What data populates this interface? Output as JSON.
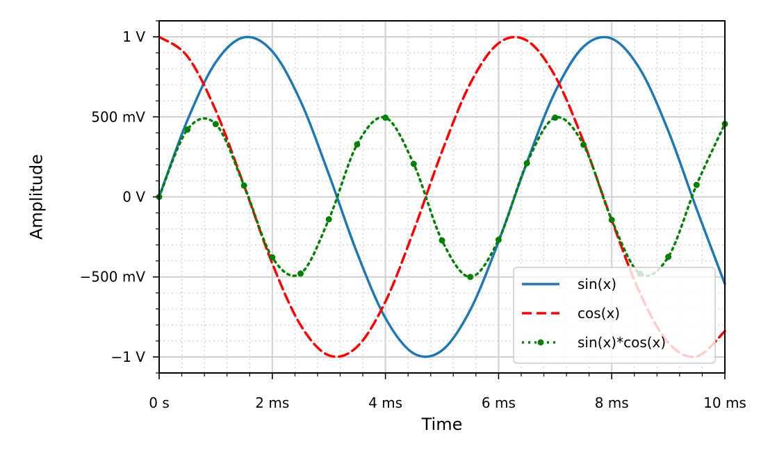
{
  "chart_data": {
    "type": "line",
    "title": "",
    "xlabel": "Time",
    "ylabel": "Amplitude",
    "x_unit": "s",
    "y_unit": "V",
    "xlim": [
      0,
      0.01
    ],
    "ylim": [
      -1.1,
      1.1
    ],
    "x_ticks": [
      {
        "value": 0,
        "label": "0 s"
      },
      {
        "value": 0.002,
        "label": "2 ms"
      },
      {
        "value": 0.004,
        "label": "4 ms"
      },
      {
        "value": 0.006,
        "label": "6 ms"
      },
      {
        "value": 0.008,
        "label": "8 ms"
      },
      {
        "value": 0.01,
        "label": "10 ms"
      }
    ],
    "y_ticks": [
      {
        "value": 1,
        "label": "1 V"
      },
      {
        "value": 0.5,
        "label": "500 mV"
      },
      {
        "value": 0,
        "label": "0 V"
      },
      {
        "value": -0.5,
        "label": "−500 mV"
      },
      {
        "value": -1,
        "label": "−1 V"
      }
    ],
    "grid": {
      "major": true,
      "minor": true
    },
    "legend": {
      "placement": "lower-right"
    },
    "series": [
      {
        "name": "sin(x)",
        "color": "#1f77b4",
        "linestyle": "solid",
        "x": [
          0,
          0.0005,
          0.001,
          0.0015,
          0.002,
          0.0025,
          0.003,
          0.0035,
          0.004,
          0.0045,
          0.005,
          0.0055,
          0.006,
          0.0065,
          0.007,
          0.0075,
          0.008,
          0.0085,
          0.009,
          0.0095,
          0.01
        ],
        "values": [
          0,
          0.479,
          0.841,
          0.997,
          0.909,
          0.598,
          0.141,
          -0.351,
          -0.757,
          -0.978,
          -0.959,
          -0.706,
          -0.279,
          0.215,
          0.657,
          0.938,
          0.989,
          0.798,
          0.412,
          -0.075,
          -0.544
        ]
      },
      {
        "name": "cos(x)",
        "color": "#ff0000",
        "linestyle": "dashed",
        "x": [
          0,
          0.0005,
          0.001,
          0.0015,
          0.002,
          0.0025,
          0.003,
          0.0035,
          0.004,
          0.0045,
          0.005,
          0.0055,
          0.006,
          0.0065,
          0.007,
          0.0075,
          0.008,
          0.0085,
          0.009,
          0.0095,
          0.01
        ],
        "values": [
          1,
          0.878,
          0.54,
          0.071,
          -0.416,
          -0.801,
          -0.99,
          -0.936,
          -0.654,
          -0.211,
          0.284,
          0.709,
          0.96,
          0.977,
          0.754,
          0.347,
          -0.146,
          -0.602,
          -0.911,
          -0.997,
          -0.839
        ]
      },
      {
        "name": "sin(x)*cos(x)",
        "color": "#008000",
        "linestyle": "dotted",
        "marker": "circle",
        "x": [
          0,
          0.0005,
          0.001,
          0.0015,
          0.002,
          0.0025,
          0.003,
          0.0035,
          0.004,
          0.0045,
          0.005,
          0.0055,
          0.006,
          0.0065,
          0.007,
          0.0075,
          0.008,
          0.0085,
          0.009,
          0.0095,
          0.01
        ],
        "values": [
          0,
          0.421,
          0.455,
          0.071,
          -0.378,
          -0.479,
          -0.14,
          0.328,
          0.495,
          0.206,
          -0.272,
          -0.5,
          -0.268,
          0.21,
          0.495,
          0.326,
          -0.144,
          -0.48,
          -0.375,
          0.075,
          0.456
        ]
      }
    ]
  }
}
